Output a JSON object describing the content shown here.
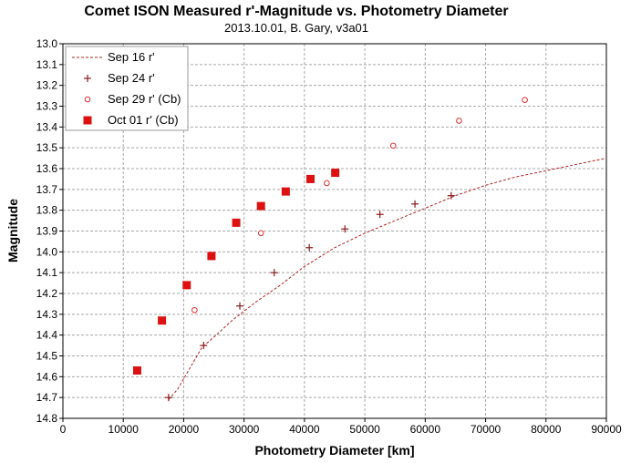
{
  "chart_data": {
    "type": "scatter",
    "title": "Comet ISON Measured r'-Magnitude  vs. Photometry Diameter",
    "subtitle": "2013.10.01,  B. Gary,  v3a01",
    "xlabel": "Photometry Diameter  [km]",
    "ylabel": "Magnitude",
    "xlim": [
      0,
      90000
    ],
    "ylim": [
      13.0,
      14.8
    ],
    "y_inverted": true,
    "x_ticks": [
      "0",
      "10000",
      "20000",
      "30000",
      "40000",
      "50000",
      "60000",
      "70000",
      "80000",
      "90000"
    ],
    "y_ticks": [
      "13.0",
      "13.1",
      "13.2",
      "13.3",
      "13.4",
      "13.5",
      "13.6",
      "13.7",
      "13.8",
      "13.9",
      "14.0",
      "14.1",
      "14.2",
      "14.3",
      "14.4",
      "14.5",
      "14.6",
      "14.7",
      "14.8"
    ],
    "grid": true,
    "legend_position": "top-left",
    "series": [
      {
        "name": "Sep 16 r'",
        "style": "dashed-line",
        "color": "#b22222",
        "points": [
          [
            17500,
            14.71
          ],
          [
            19000,
            14.66
          ],
          [
            21000,
            14.56
          ],
          [
            23000,
            14.46
          ],
          [
            25000,
            14.41
          ],
          [
            28000,
            14.33
          ],
          [
            32000,
            14.24
          ],
          [
            36000,
            14.16
          ],
          [
            40000,
            14.07
          ],
          [
            45000,
            13.98
          ],
          [
            50000,
            13.91
          ],
          [
            55000,
            13.85
          ],
          [
            60000,
            13.79
          ],
          [
            65000,
            13.73
          ],
          [
            70000,
            13.68
          ],
          [
            75000,
            13.64
          ],
          [
            80000,
            13.61
          ],
          [
            85000,
            13.58
          ],
          [
            90000,
            13.55
          ]
        ]
      },
      {
        "name": "Sep 24 r'",
        "style": "plus",
        "color": "#8b1a1a",
        "points": [
          [
            17500,
            14.7
          ],
          [
            23300,
            14.45
          ],
          [
            29300,
            14.26
          ],
          [
            35000,
            14.1
          ],
          [
            40800,
            13.98
          ],
          [
            46700,
            13.89
          ],
          [
            52500,
            13.82
          ],
          [
            58300,
            13.77
          ],
          [
            64300,
            13.73
          ]
        ]
      },
      {
        "name": "Sep 29 r' (Cb)",
        "style": "open-circle",
        "color": "#e03030",
        "points": [
          [
            21800,
            14.28
          ],
          [
            32800,
            13.91
          ],
          [
            43700,
            13.67
          ],
          [
            54700,
            13.49
          ],
          [
            65600,
            13.37
          ],
          [
            76500,
            13.27
          ]
        ]
      },
      {
        "name": "Oct 01 r' (Cb)",
        "style": "filled-square",
        "color": "#dd1111",
        "points": [
          [
            12300,
            14.57
          ],
          [
            16400,
            14.33
          ],
          [
            20500,
            14.16
          ],
          [
            24600,
            14.02
          ],
          [
            28700,
            13.86
          ],
          [
            32800,
            13.78
          ],
          [
            36900,
            13.71
          ],
          [
            41000,
            13.65
          ],
          [
            45100,
            13.62
          ]
        ]
      }
    ]
  }
}
